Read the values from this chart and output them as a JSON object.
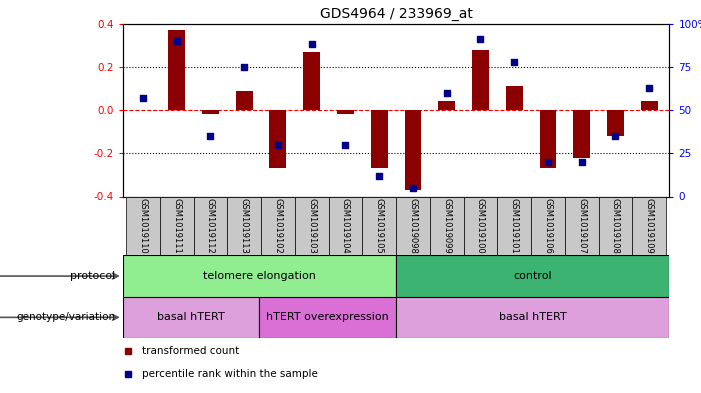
{
  "title": "GDS4964 / 233969_at",
  "samples": [
    "GSM1019110",
    "GSM1019111",
    "GSM1019112",
    "GSM1019113",
    "GSM1019102",
    "GSM1019103",
    "GSM1019104",
    "GSM1019105",
    "GSM1019098",
    "GSM1019099",
    "GSM1019100",
    "GSM1019101",
    "GSM1019106",
    "GSM1019107",
    "GSM1019108",
    "GSM1019109"
  ],
  "transformed_count": [
    0.0,
    0.37,
    -0.02,
    0.09,
    -0.27,
    0.27,
    -0.02,
    -0.27,
    -0.37,
    0.04,
    0.28,
    0.11,
    -0.27,
    -0.22,
    -0.12,
    0.04
  ],
  "percentile_rank": [
    57,
    90,
    35,
    75,
    30,
    88,
    30,
    12,
    5,
    60,
    91,
    78,
    20,
    20,
    35,
    63
  ],
  "protocol_groups": [
    {
      "label": "telomere elongation",
      "start": 0,
      "end": 8,
      "color": "#90EE90"
    },
    {
      "label": "control",
      "start": 8,
      "end": 16,
      "color": "#3CB371"
    }
  ],
  "genotype_groups": [
    {
      "label": "basal hTERT",
      "start": 0,
      "end": 4,
      "color": "#DDA0DD"
    },
    {
      "label": "hTERT overexpression",
      "start": 4,
      "end": 8,
      "color": "#DA70D6"
    },
    {
      "label": "basal hTERT",
      "start": 8,
      "end": 16,
      "color": "#DDA0DD"
    }
  ],
  "bar_color": "#8B0000",
  "dot_color": "#00008B",
  "ylim_left": [
    -0.4,
    0.4
  ],
  "ylim_right": [
    0,
    100
  ],
  "yticks_left": [
    -0.4,
    -0.2,
    0.0,
    0.2,
    0.4
  ],
  "yticks_right": [
    0,
    25,
    50,
    75,
    100
  ],
  "ytick_labels_right": [
    "0",
    "25",
    "50",
    "75",
    "100%"
  ],
  "legend_items": [
    {
      "label": "transformed count",
      "color": "#8B0000"
    },
    {
      "label": "percentile rank within the sample",
      "color": "#00008B"
    }
  ],
  "bar_width": 0.5,
  "sample_box_color": "#C8C8C8",
  "label_color_proto": "#555555",
  "label_color_geno": "#555555"
}
